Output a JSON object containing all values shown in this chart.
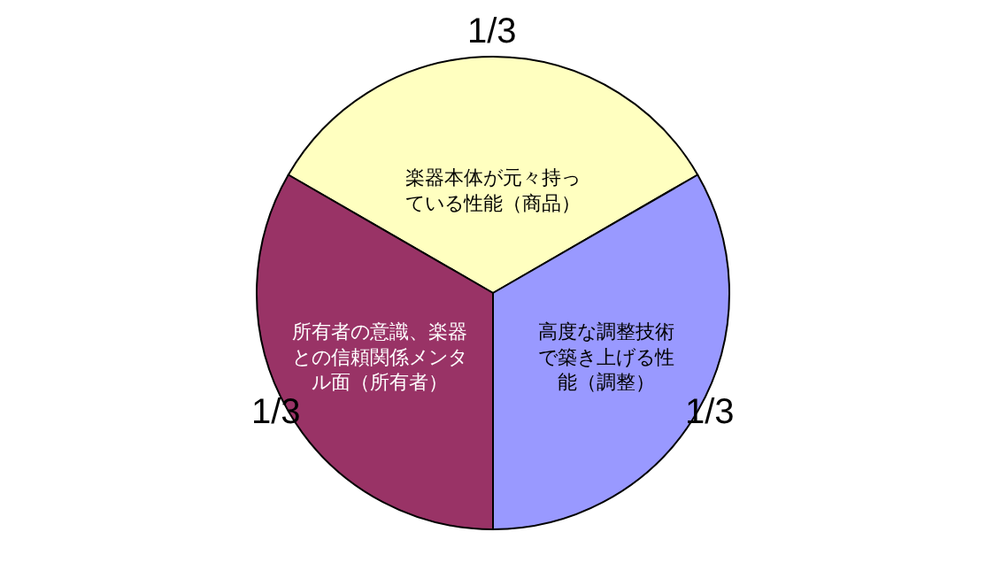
{
  "chart_data": {
    "type": "pie",
    "categories": [
      "楽器本体が元々持っている性能（商品）",
      "高度な調整技術で築き上げる性能（調整）",
      "所有者の意識、楽器との信頼関係メンタル面（所有者）"
    ],
    "values": [
      0.3333,
      0.3333,
      0.3333
    ],
    "colors": [
      "#ffffc0",
      "#9999ff",
      "#993366"
    ],
    "value_labels": [
      "1/3",
      "1/3",
      "1/3"
    ]
  }
}
